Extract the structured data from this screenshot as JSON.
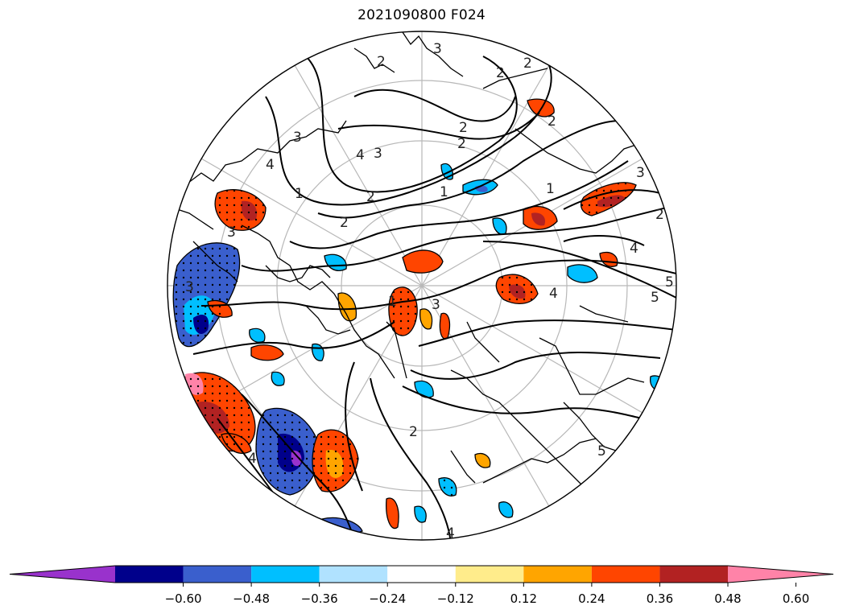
{
  "title": "2021090800 F024",
  "colorbar": {
    "colors": [
      "#9932CC",
      "#00008B",
      "#3A5FCD",
      "#00BFFF",
      "#B0E2FF",
      "#FFFFFF",
      "#FFEC8B",
      "#FFA500",
      "#FF4500",
      "#B22222",
      "#FF83A8"
    ],
    "extend": "both",
    "tick_labels": [
      "−0.60",
      "−0.48",
      "−0.36",
      "−0.24",
      "−0.12",
      "0.12",
      "0.24",
      "0.36",
      "0.48",
      "0.60"
    ]
  },
  "contour_labels": [
    "3",
    "2",
    "2",
    "2",
    "1",
    "2",
    "2",
    "1",
    "1",
    "3",
    "4",
    "4",
    "5",
    "3",
    "4",
    "4",
    "2",
    "2",
    "3",
    "4",
    "5",
    "5",
    "2",
    "2",
    "4",
    "2",
    "3",
    "3",
    "1",
    "3"
  ],
  "map": {
    "projection": "north-polar-stereographic",
    "boundary": "circle",
    "gridlines": "gray",
    "coastlines": "black"
  }
}
